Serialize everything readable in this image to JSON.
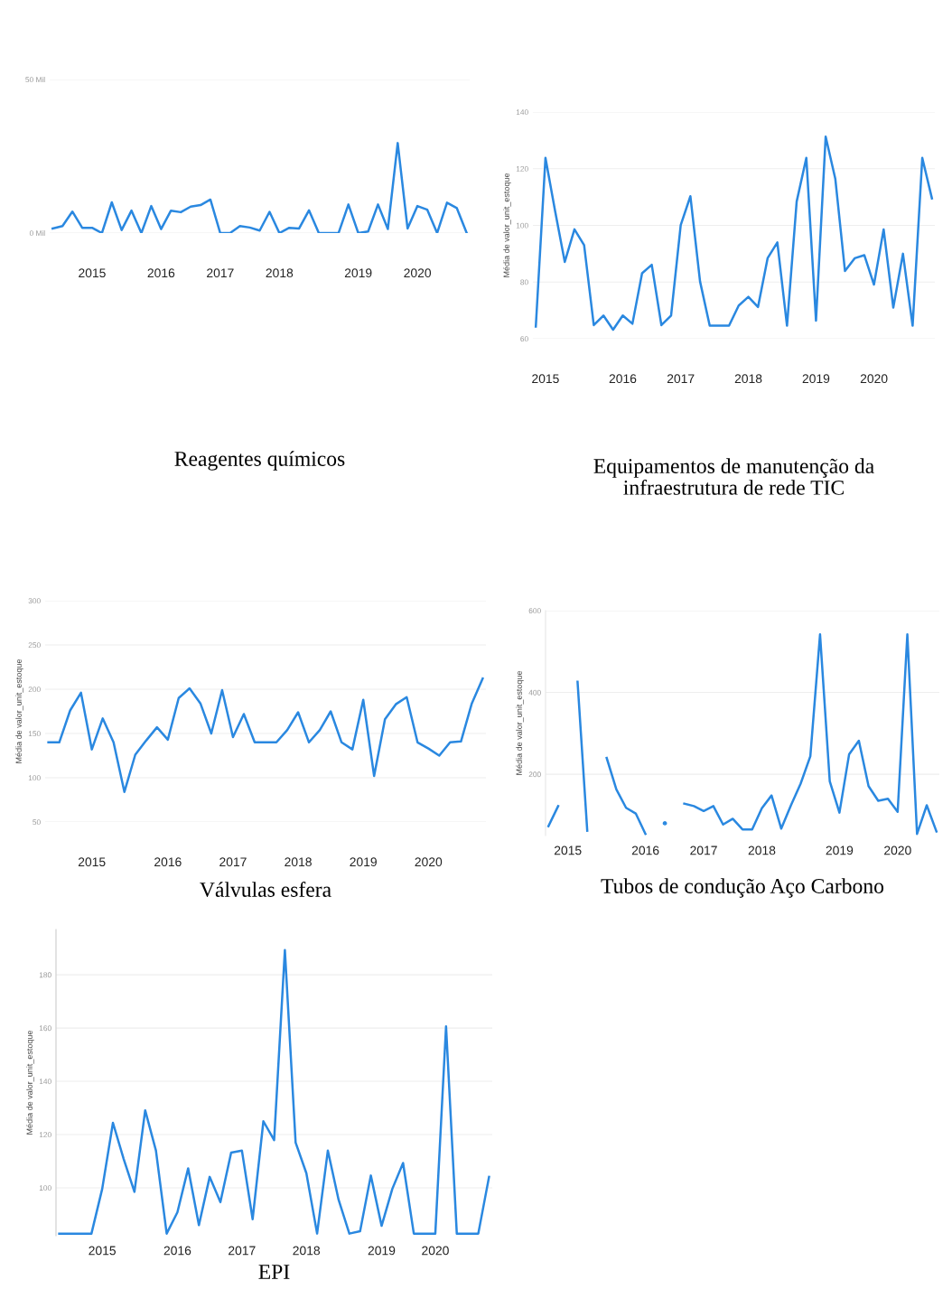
{
  "chart_data": [
    {
      "type": "line",
      "title": "Reagentes químicos",
      "grid": "y",
      "ylim": [
        0,
        50
      ],
      "yticks": [
        {
          "value": 0,
          "label": "0 Mil"
        },
        {
          "value": 50,
          "label": "50 Mil"
        }
      ],
      "categories": [
        null,
        null,
        null,
        null,
        "2015",
        null,
        null,
        null,
        null,
        null,
        null,
        "2016",
        null,
        null,
        null,
        null,
        null,
        "2017",
        null,
        null,
        null,
        null,
        null,
        "2018",
        null,
        null,
        null,
        null,
        null,
        null,
        null,
        "2019",
        null,
        null,
        null,
        null,
        null,
        "2020",
        null,
        null,
        null,
        null,
        null
      ],
      "series": [
        {
          "color": "#2a88e0",
          "values": [
            1.5,
            2.3,
            7,
            1.7,
            1.7,
            0,
            10,
            1,
            7.3,
            0,
            8.8,
            1.3,
            7.3,
            6.8,
            8.6,
            9.1,
            10.9,
            0,
            0,
            2.3,
            1.8,
            0.8,
            6.9,
            0,
            1.7,
            1.5,
            7.4,
            0,
            0,
            0,
            9.3,
            0,
            0.5,
            9.3,
            1.3,
            29.3,
            1.5,
            8.8,
            7.6,
            0,
            9.9,
            8.1,
            0
          ]
        }
      ]
    },
    {
      "type": "line",
      "title": "Equipamentos de manutenção da\ninfraestrutura de rede TIC",
      "ylabel": "Média de valor_unit_estoque",
      "grid": "y",
      "ylim": [
        60,
        140
      ],
      "yticks": [
        60,
        80,
        100,
        120,
        140
      ],
      "categories": [
        null,
        "2015",
        null,
        null,
        null,
        null,
        null,
        null,
        null,
        "2016",
        null,
        null,
        null,
        null,
        null,
        "2017",
        null,
        null,
        null,
        null,
        null,
        null,
        "2018",
        null,
        null,
        null,
        null,
        null,
        null,
        "2019",
        null,
        null,
        null,
        null,
        null,
        "2020",
        null,
        null,
        null,
        null,
        null,
        null
      ],
      "series": [
        {
          "color": "#2a88e0",
          "values": [
            64.3,
            123.8,
            105,
            87.1,
            98.6,
            93,
            64.8,
            68.2,
            63.2,
            68.2,
            65.3,
            83.1,
            86.1,
            64.8,
            68.2,
            100.1,
            110.3,
            80.2,
            64.6,
            64.6,
            64.6,
            71.7,
            74.8,
            71.2,
            88.5,
            94,
            64.6,
            108.4,
            123.8,
            66.4,
            131.3,
            116.4,
            83.9,
            88.4,
            89.5,
            79.1,
            98.6,
            71,
            90,
            64.6,
            123.8,
            109.5
          ]
        }
      ]
    },
    {
      "type": "line",
      "title": "Válvulas esfera",
      "ylabel": "Média de valor_unit_estoque",
      "grid": "y",
      "ylim": [
        50,
        300
      ],
      "yticks": [
        50,
        100,
        150,
        200,
        250,
        300
      ],
      "categories": [
        null,
        null,
        null,
        null,
        "2015",
        null,
        null,
        null,
        null,
        null,
        null,
        "2016",
        null,
        null,
        null,
        null,
        null,
        "2017",
        null,
        null,
        null,
        null,
        null,
        "2018",
        null,
        null,
        null,
        null,
        null,
        "2019",
        null,
        null,
        null,
        null,
        null,
        "2020",
        null,
        null,
        null,
        null,
        null
      ],
      "series": [
        {
          "color": "#2a88e0",
          "values": [
            140,
            140,
            176,
            196,
            132,
            167,
            140,
            84,
            126,
            142,
            157,
            143,
            190,
            201,
            184,
            150,
            199,
            146,
            172,
            140,
            140,
            140,
            154,
            174,
            140,
            154,
            175,
            140,
            132,
            188,
            102,
            166,
            183,
            191,
            140,
            133,
            125,
            140,
            141,
            184,
            212
          ]
        }
      ]
    },
    {
      "type": "line",
      "title": "Tubos de condução Aço Carbono",
      "ylabel": "Média de valor_unit_estoque",
      "grid": "y",
      "ylim": [
        50,
        600
      ],
      "yticks": [
        200,
        400,
        600
      ],
      "categories": [
        null,
        null,
        "2015",
        null,
        null,
        null,
        null,
        null,
        null,
        null,
        "2016",
        null,
        null,
        null,
        null,
        null,
        "2017",
        null,
        null,
        null,
        null,
        null,
        "2018",
        null,
        null,
        null,
        null,
        null,
        null,
        null,
        "2019",
        null,
        null,
        null,
        null,
        null,
        "2020",
        null,
        null,
        null,
        null
      ],
      "series": [
        {
          "color": "#2a88e0",
          "values": [
            73,
            122,
            null,
            426,
            62,
            null,
            240,
            163,
            118,
            104,
            54,
            null,
            80,
            null,
            128,
            122,
            110,
            122,
            77,
            91,
            65,
            65,
            117,
            148,
            67,
            124,
            177,
            244,
            542,
            183,
            106,
            249,
            282,
            171,
            135,
            140,
            108,
            542,
            54,
            124,
            60
          ]
        }
      ]
    },
    {
      "type": "line",
      "title": "EPI",
      "ylabel": "Média de valor_unit_estoque",
      "grid": "y",
      "ylim": [
        82,
        197
      ],
      "yticks": [
        100,
        120,
        140,
        160,
        180
      ],
      "categories": [
        null,
        null,
        null,
        null,
        "2015",
        null,
        null,
        null,
        null,
        null,
        null,
        "2016",
        null,
        null,
        null,
        null,
        null,
        "2017",
        null,
        null,
        null,
        null,
        null,
        "2018",
        null,
        null,
        null,
        null,
        null,
        null,
        "2019",
        null,
        null,
        null,
        null,
        "2020",
        null,
        null,
        null,
        null,
        null
      ],
      "series": [
        {
          "color": "#2a88e0",
          "values": [
            82.8,
            82.8,
            82.8,
            82.8,
            99.6,
            124.4,
            110.8,
            98.5,
            129.1,
            114,
            82.8,
            90.8,
            107.3,
            86,
            104.1,
            94.6,
            113.2,
            114,
            88.2,
            125,
            117.9,
            189.3,
            117,
            105.5,
            82.8,
            114,
            95.5,
            82.8,
            83.7,
            104.6,
            85.7,
            99.6,
            109.3,
            82.8,
            82.8,
            82.8,
            160.6,
            82.8,
            82.8,
            82.8,
            104.1
          ]
        }
      ]
    }
  ]
}
